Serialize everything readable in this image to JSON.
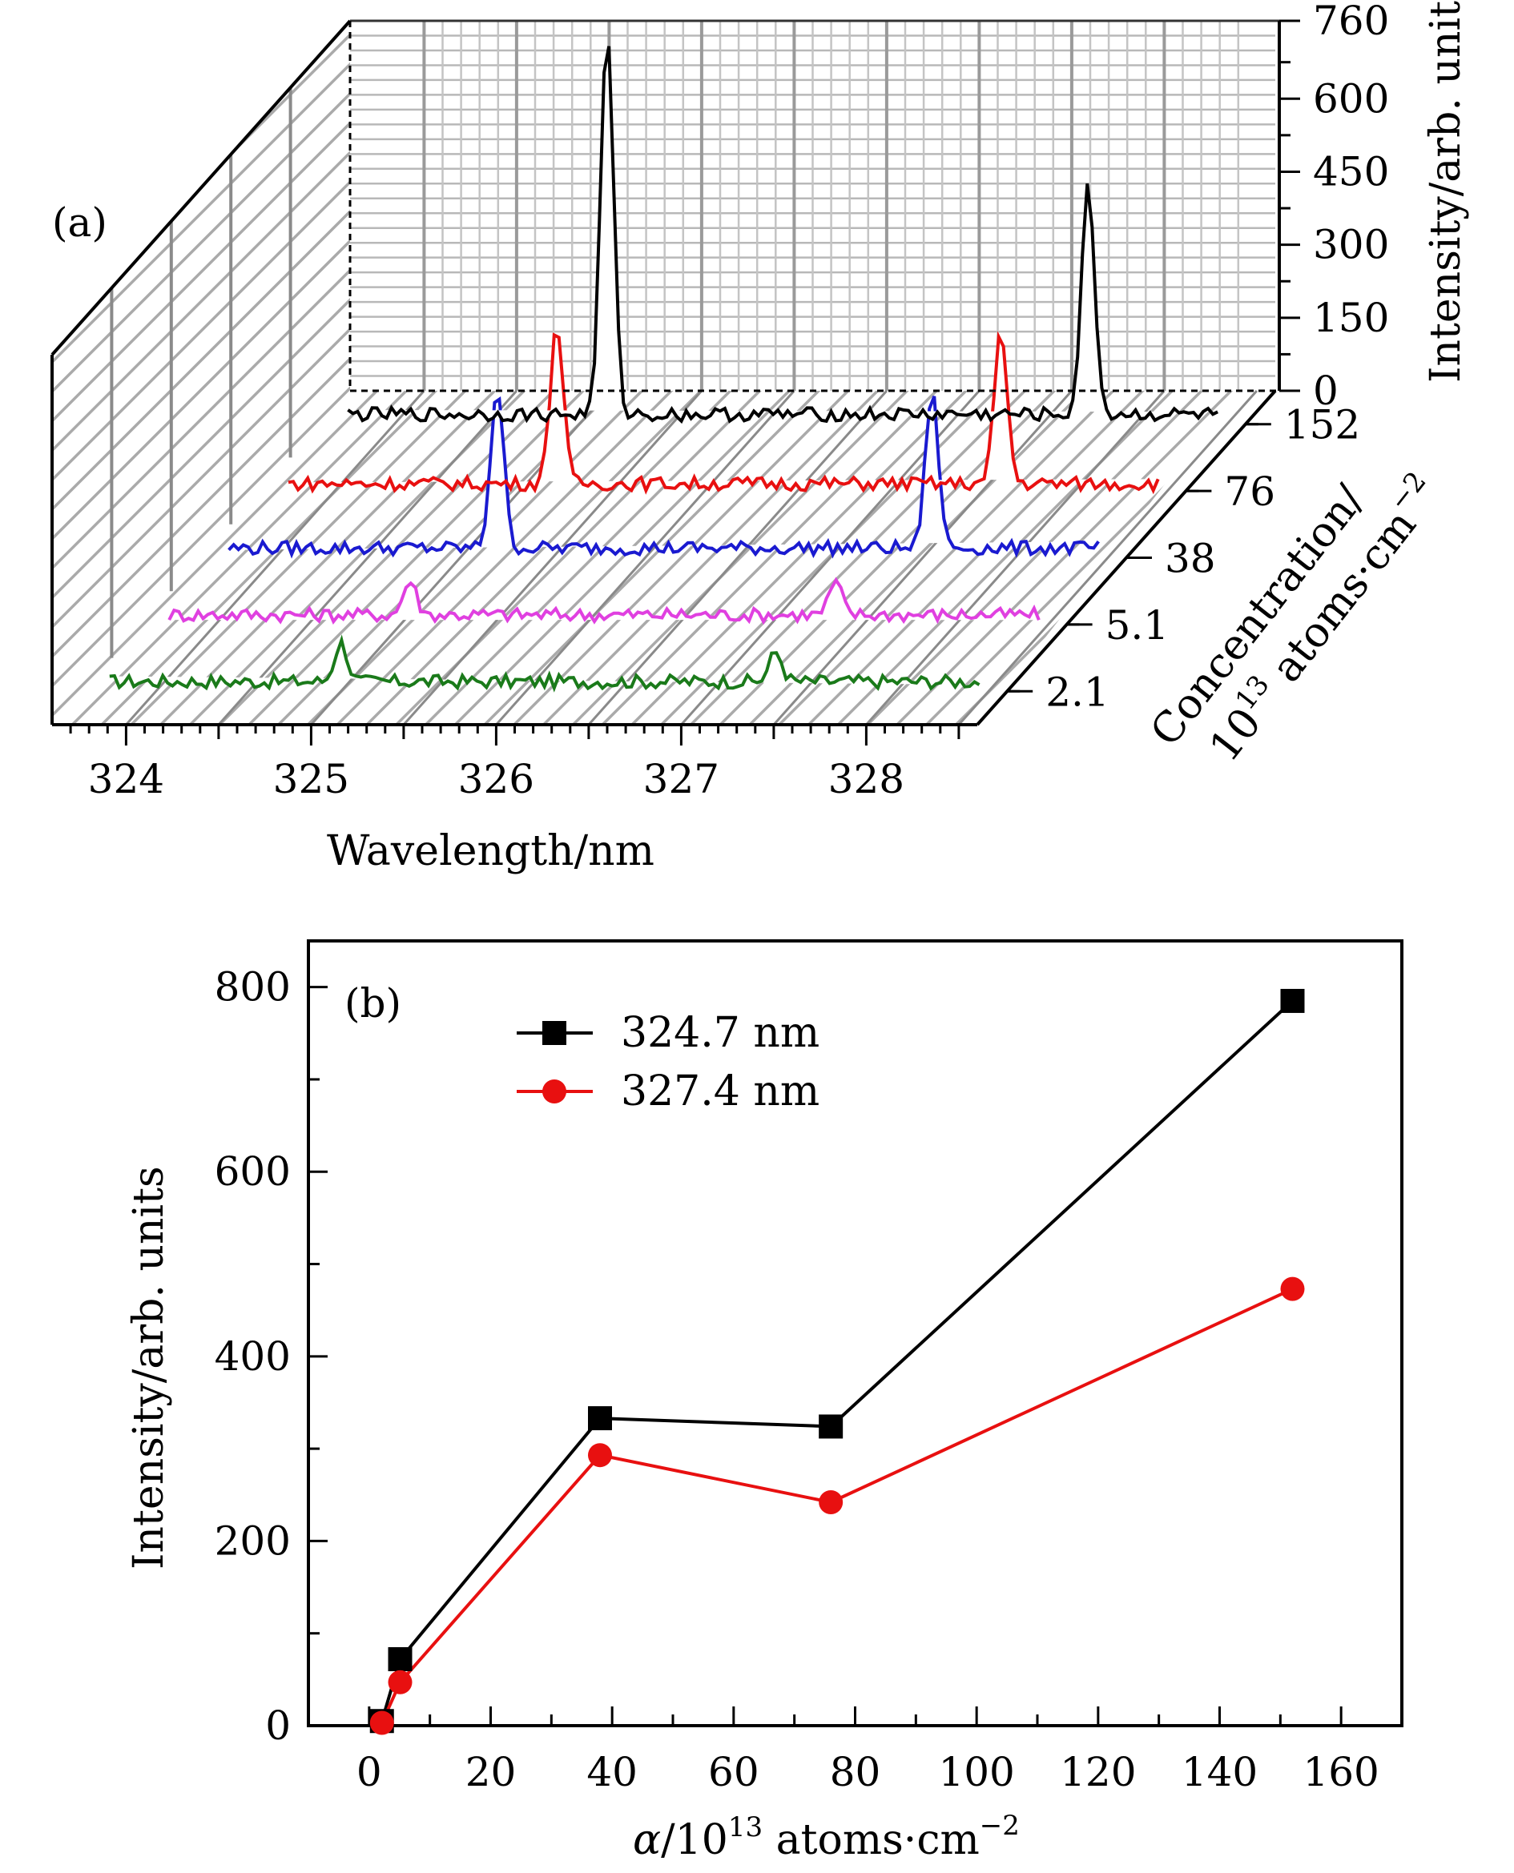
{
  "chart_data": [
    {
      "panel": "(a)",
      "type": "line",
      "projection": "3d-waterfall",
      "xlabel": "Wavelength/nm",
      "zlabel_line1": "Concentration/",
      "zlabel_line2": "10",
      "zlabel_sup": "13",
      "zlabel_line2_rest": " atoms·cm",
      "zlabel_exp": "−2",
      "ylabel": "Intensity/arb. units",
      "x_ticks": [
        "324",
        "325",
        "326",
        "327",
        "328"
      ],
      "x_tick_values": [
        324,
        325,
        326,
        327,
        328
      ],
      "xlim": [
        323.6,
        328.6
      ],
      "z_ticks": [
        "2.1",
        "5.1",
        "38",
        "76",
        "152"
      ],
      "y_ticks": [
        "0",
        "150",
        "300",
        "450",
        "600",
        "760"
      ],
      "y_tick_values": [
        0,
        150,
        300,
        450,
        600,
        760
      ],
      "ylim": [
        0,
        760
      ],
      "series": [
        {
          "concentration": "2.1",
          "color": "#1a7a1a",
          "baseline": 20,
          "peaks": [
            [
              325.0,
              80
            ],
            [
              327.35,
              60
            ]
          ]
        },
        {
          "concentration": "5.1",
          "color": "#e040e0",
          "baseline": 20,
          "peaks": [
            [
              325.05,
              70
            ],
            [
              327.35,
              65
            ]
          ]
        },
        {
          "concentration": "38",
          "color": "#1a1ad0",
          "baseline": 20,
          "peaks": [
            [
              325.2,
              330
            ],
            [
              327.55,
              320
            ]
          ]
        },
        {
          "concentration": "76",
          "color": "#e81010",
          "baseline": 15,
          "peaks": [
            [
              325.2,
              330
            ],
            [
              327.6,
              310
            ]
          ]
        },
        {
          "concentration": "152",
          "color": "#000000",
          "baseline": 20,
          "peaks": [
            [
              325.15,
              780
            ],
            [
              327.75,
              470
            ]
          ]
        }
      ]
    },
    {
      "panel": "(b)",
      "type": "line",
      "xlabel_sym": "α",
      "xlabel_base": "/10",
      "xlabel_sup": "13",
      "xlabel_rest": " atoms·cm",
      "xlabel_exp": "−2",
      "ylabel": "Intensity/arb. units",
      "xlim": [
        -10,
        170
      ],
      "ylim": [
        0,
        850
      ],
      "x_ticks": [
        0,
        20,
        40,
        60,
        80,
        100,
        120,
        140,
        160
      ],
      "y_ticks": [
        0,
        200,
        400,
        600,
        800
      ],
      "legend_position": "top-left",
      "series": [
        {
          "name": "324.7 nm",
          "color": "#000000",
          "marker": "square",
          "x": [
            2.1,
            5.1,
            38,
            76,
            152
          ],
          "y": [
            5,
            72,
            333,
            324,
            785
          ]
        },
        {
          "name": "327.4 nm",
          "color": "#e81010",
          "marker": "circle",
          "x": [
            2.1,
            5.1,
            38,
            76,
            152
          ],
          "y": [
            3,
            47,
            293,
            242,
            473
          ]
        }
      ]
    }
  ]
}
